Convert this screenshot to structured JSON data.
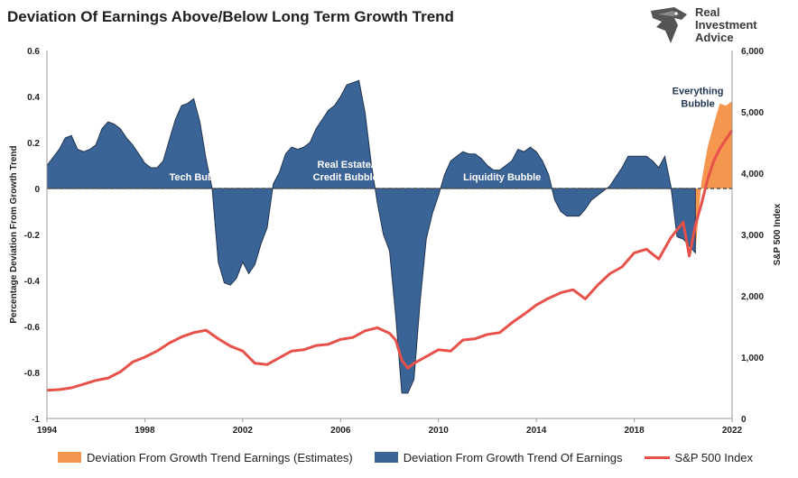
{
  "title": "Deviation Of Earnings Above/Below Long Term Growth Trend",
  "logo": {
    "line1": "Real",
    "line2": "Investment",
    "line3": "Advice",
    "icon": "eagle-head-icon"
  },
  "colors": {
    "deviation": "#3b6496",
    "deviation_stroke": "#1f3552",
    "estimates": "#f5964f",
    "sp500": "#e8504a",
    "zero_line": "#505050"
  },
  "chart_data": {
    "type": "area",
    "xlim": [
      1994,
      2022
    ],
    "x_ticks": [
      "1994",
      "1998",
      "2002",
      "2006",
      "2010",
      "2014",
      "2018",
      "2022"
    ],
    "ylabel_left": "Percentage Deviation From Growth Trend",
    "ylim_left": [
      -1,
      0.6
    ],
    "y_ticks_left": [
      "0.6",
      "0.4",
      "0.2",
      "0",
      "-0.2",
      "-0.4",
      "-0.6",
      "-0.8",
      "-1"
    ],
    "ylabel_right": "S&P 500 Index",
    "ylim_right": [
      0,
      6000
    ],
    "y_ticks_right": [
      "6,000",
      "5,000",
      "4,000",
      "3,000",
      "2,000",
      "1,000",
      "0"
    ],
    "grid": false,
    "legend_position": "bottom",
    "series": [
      {
        "name": "Deviation From Growth Trend Of Earnings",
        "type": "area",
        "axis": "left",
        "points": [
          [
            1994.0,
            0.1
          ],
          [
            1994.5,
            0.17
          ],
          [
            1994.75,
            0.22
          ],
          [
            1995.0,
            0.23
          ],
          [
            1995.25,
            0.17
          ],
          [
            1995.5,
            0.16
          ],
          [
            1995.75,
            0.17
          ],
          [
            1996.0,
            0.19
          ],
          [
            1996.25,
            0.26
          ],
          [
            1996.5,
            0.29
          ],
          [
            1996.75,
            0.28
          ],
          [
            1997.0,
            0.26
          ],
          [
            1997.25,
            0.22
          ],
          [
            1997.5,
            0.19
          ],
          [
            1997.75,
            0.15
          ],
          [
            1998.0,
            0.11
          ],
          [
            1998.25,
            0.09
          ],
          [
            1998.5,
            0.09
          ],
          [
            1998.75,
            0.12
          ],
          [
            1999.0,
            0.21
          ],
          [
            1999.25,
            0.3
          ],
          [
            1999.5,
            0.36
          ],
          [
            1999.75,
            0.37
          ],
          [
            2000.0,
            0.39
          ],
          [
            2000.25,
            0.29
          ],
          [
            2000.5,
            0.13
          ],
          [
            2000.75,
            0.0
          ],
          [
            2001.0,
            -0.32
          ],
          [
            2001.25,
            -0.41
          ],
          [
            2001.5,
            -0.42
          ],
          [
            2001.75,
            -0.39
          ],
          [
            2002.0,
            -0.32
          ],
          [
            2002.25,
            -0.37
          ],
          [
            2002.5,
            -0.33
          ],
          [
            2002.75,
            -0.24
          ],
          [
            2003.0,
            -0.17
          ],
          [
            2003.25,
            0.02
          ],
          [
            2003.5,
            0.07
          ],
          [
            2003.75,
            0.15
          ],
          [
            2004.0,
            0.18
          ],
          [
            2004.25,
            0.17
          ],
          [
            2004.5,
            0.18
          ],
          [
            2004.75,
            0.2
          ],
          [
            2005.0,
            0.26
          ],
          [
            2005.25,
            0.3
          ],
          [
            2005.5,
            0.34
          ],
          [
            2005.75,
            0.36
          ],
          [
            2006.0,
            0.4
          ],
          [
            2006.25,
            0.45
          ],
          [
            2006.5,
            0.46
          ],
          [
            2006.75,
            0.47
          ],
          [
            2007.0,
            0.33
          ],
          [
            2007.25,
            0.11
          ],
          [
            2007.5,
            -0.06
          ],
          [
            2007.75,
            -0.2
          ],
          [
            2008.0,
            -0.27
          ],
          [
            2008.25,
            -0.55
          ],
          [
            2008.5,
            -0.89
          ],
          [
            2008.75,
            -0.89
          ],
          [
            2009.0,
            -0.83
          ],
          [
            2009.25,
            -0.49
          ],
          [
            2009.5,
            -0.22
          ],
          [
            2009.75,
            -0.11
          ],
          [
            2010.0,
            -0.03
          ],
          [
            2010.25,
            0.06
          ],
          [
            2010.5,
            0.12
          ],
          [
            2010.75,
            0.14
          ],
          [
            2011.0,
            0.16
          ],
          [
            2011.25,
            0.15
          ],
          [
            2011.5,
            0.15
          ],
          [
            2011.75,
            0.13
          ],
          [
            2012.0,
            0.1
          ],
          [
            2012.25,
            0.08
          ],
          [
            2012.5,
            0.08
          ],
          [
            2012.75,
            0.1
          ],
          [
            2013.0,
            0.12
          ],
          [
            2013.25,
            0.17
          ],
          [
            2013.5,
            0.16
          ],
          [
            2013.75,
            0.18
          ],
          [
            2014.0,
            0.16
          ],
          [
            2014.25,
            0.12
          ],
          [
            2014.5,
            0.06
          ],
          [
            2014.75,
            -0.05
          ],
          [
            2015.0,
            -0.1
          ],
          [
            2015.25,
            -0.12
          ],
          [
            2015.5,
            -0.12
          ],
          [
            2015.75,
            -0.12
          ],
          [
            2016.0,
            -0.09
          ],
          [
            2016.25,
            -0.05
          ],
          [
            2016.5,
            -0.03
          ],
          [
            2016.75,
            -0.01
          ],
          [
            2017.0,
            0.01
          ],
          [
            2017.25,
            0.05
          ],
          [
            2017.5,
            0.09
          ],
          [
            2017.75,
            0.14
          ],
          [
            2018.0,
            0.14
          ],
          [
            2018.25,
            0.14
          ],
          [
            2018.5,
            0.14
          ],
          [
            2018.75,
            0.12
          ],
          [
            2019.0,
            0.09
          ],
          [
            2019.25,
            0.14
          ],
          [
            2019.5,
            0.01
          ],
          [
            2019.75,
            -0.21
          ],
          [
            2020.0,
            -0.22
          ],
          [
            2020.25,
            -0.25
          ],
          [
            2020.5,
            -0.28
          ],
          [
            2020.5,
            0.0
          ]
        ]
      },
      {
        "name": "Deviation From Growth Trend Earnings (Estimates)",
        "type": "area",
        "axis": "left",
        "points": [
          [
            2020.5,
            -0.28
          ],
          [
            2020.75,
            0.03
          ],
          [
            2021.0,
            0.18
          ],
          [
            2021.25,
            0.28
          ],
          [
            2021.5,
            0.37
          ],
          [
            2021.75,
            0.36
          ],
          [
            2022.0,
            0.38
          ],
          [
            2022.0,
            0.0
          ]
        ]
      },
      {
        "name": "S&P 500 Index",
        "type": "line",
        "axis": "right",
        "points": [
          [
            1994.0,
            460
          ],
          [
            1994.5,
            470
          ],
          [
            1995.0,
            500
          ],
          [
            1995.5,
            560
          ],
          [
            1996.0,
            620
          ],
          [
            1996.5,
            660
          ],
          [
            1997.0,
            760
          ],
          [
            1997.5,
            920
          ],
          [
            1998.0,
            1000
          ],
          [
            1998.5,
            1100
          ],
          [
            1999.0,
            1230
          ],
          [
            1999.5,
            1330
          ],
          [
            2000.0,
            1400
          ],
          [
            2000.5,
            1440
          ],
          [
            2001.0,
            1300
          ],
          [
            2001.5,
            1180
          ],
          [
            2002.0,
            1100
          ],
          [
            2002.5,
            900
          ],
          [
            2003.0,
            880
          ],
          [
            2003.5,
            990
          ],
          [
            2004.0,
            1100
          ],
          [
            2004.5,
            1120
          ],
          [
            2005.0,
            1190
          ],
          [
            2005.5,
            1210
          ],
          [
            2006.0,
            1290
          ],
          [
            2006.5,
            1320
          ],
          [
            2007.0,
            1430
          ],
          [
            2007.5,
            1480
          ],
          [
            2008.0,
            1390
          ],
          [
            2008.25,
            1280
          ],
          [
            2008.5,
            950
          ],
          [
            2008.75,
            820
          ],
          [
            2009.0,
            900
          ],
          [
            2009.5,
            1010
          ],
          [
            2010.0,
            1120
          ],
          [
            2010.5,
            1100
          ],
          [
            2011.0,
            1280
          ],
          [
            2011.5,
            1300
          ],
          [
            2012.0,
            1370
          ],
          [
            2012.5,
            1400
          ],
          [
            2013.0,
            1560
          ],
          [
            2013.5,
            1700
          ],
          [
            2014.0,
            1850
          ],
          [
            2014.5,
            1960
          ],
          [
            2015.0,
            2050
          ],
          [
            2015.5,
            2100
          ],
          [
            2016.0,
            1950
          ],
          [
            2016.5,
            2170
          ],
          [
            2017.0,
            2360
          ],
          [
            2017.5,
            2470
          ],
          [
            2018.0,
            2700
          ],
          [
            2018.5,
            2760
          ],
          [
            2019.0,
            2600
          ],
          [
            2019.5,
            2950
          ],
          [
            2020.0,
            3200
          ],
          [
            2020.25,
            2650
          ],
          [
            2020.5,
            3150
          ],
          [
            2020.75,
            3500
          ],
          [
            2021.0,
            3900
          ],
          [
            2021.25,
            4200
          ],
          [
            2021.5,
            4400
          ],
          [
            2021.75,
            4550
          ],
          [
            2022.0,
            4700
          ]
        ]
      }
    ],
    "annotations": [
      {
        "text": "Tech Bubble",
        "x": 2000.2,
        "y": 0.035,
        "color": "#ffffff"
      },
      {
        "text": "Real Estate/",
        "x": 2006.2,
        "y": 0.09,
        "color": "#ffffff"
      },
      {
        "text": "Credit Bubble",
        "x": 2006.2,
        "y": 0.035,
        "color": "#ffffff"
      },
      {
        "text": "Liquidity Bubble",
        "x": 2012.6,
        "y": 0.035,
        "color": "#ffffff"
      },
      {
        "text": "Everything",
        "x": 2020.6,
        "y": 0.41,
        "color": "#1f3552"
      },
      {
        "text": "Bubble",
        "x": 2020.6,
        "y": 0.355,
        "color": "#1f3552"
      }
    ]
  },
  "legend": {
    "estimates": "Deviation From Growth Trend Earnings (Estimates)",
    "deviation": "Deviation From Growth Trend Of Earnings",
    "sp500": "S&P 500 Index"
  }
}
